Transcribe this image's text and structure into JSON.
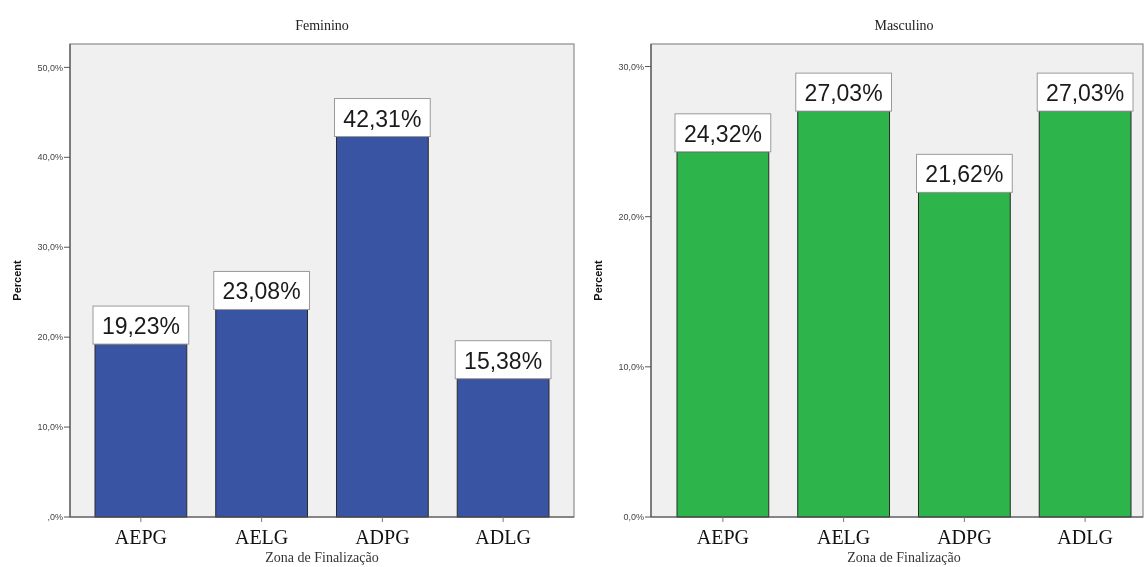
{
  "chart_data": [
    {
      "type": "bar",
      "title": "Feminino",
      "xlabel": "Zona de Finalização",
      "ylabel": "Percent",
      "categories": [
        "AEPG",
        "AELG",
        "ADPG",
        "ADLG"
      ],
      "values": [
        19.23,
        23.08,
        42.31,
        15.38
      ],
      "value_labels": [
        "19,23%",
        "23,08%",
        "42,31%",
        "15,38%"
      ],
      "color": "#3a54a4",
      "ylim": [
        0,
        52.6
      ],
      "yticks": [
        {
          "value": 0,
          "label": ",0%"
        },
        {
          "value": 10,
          "label": "10,0%"
        },
        {
          "value": 20,
          "label": "20,0%"
        },
        {
          "value": 30,
          "label": "30,0%"
        },
        {
          "value": 40,
          "label": "40,0%"
        },
        {
          "value": 50,
          "label": "50,0%"
        }
      ]
    },
    {
      "type": "bar",
      "title": "Masculino",
      "xlabel": "Zona de Finalização",
      "ylabel": "Percent",
      "categories": [
        "AEPG",
        "AELG",
        "ADPG",
        "ADLG"
      ],
      "values": [
        24.32,
        27.03,
        21.62,
        27.03
      ],
      "value_labels": [
        "24,32%",
        "27,03%",
        "21,62%",
        "27,03%"
      ],
      "color": "#2db54b",
      "ylim": [
        0,
        31.5
      ],
      "yticks": [
        {
          "value": 0,
          "label": "0,0%"
        },
        {
          "value": 10,
          "label": "10,0%"
        },
        {
          "value": 20,
          "label": "20,0%"
        },
        {
          "value": 30,
          "label": "30,0%"
        }
      ]
    }
  ]
}
